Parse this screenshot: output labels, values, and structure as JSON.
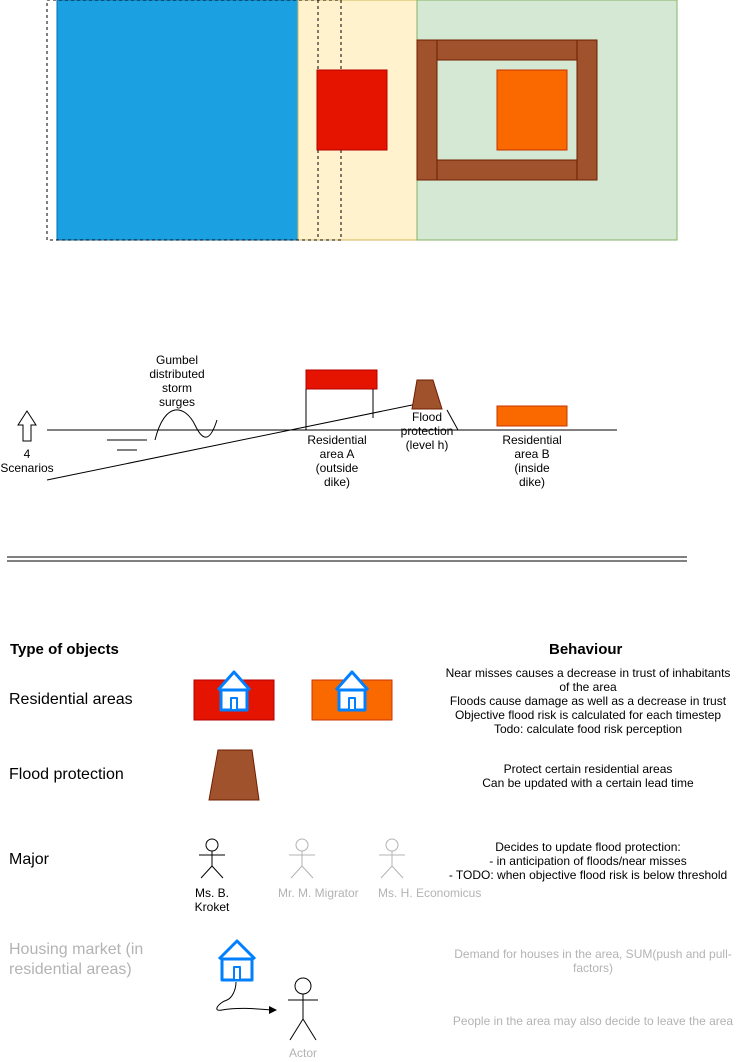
{
  "colors": {
    "sea": "#1ba1e2",
    "beach": "#fff2cc",
    "land": "#d5e8d4",
    "land_border": "#82b366",
    "beach_border": "#d6b656",
    "dike": "#a0522d",
    "area_a": "#e51400",
    "area_b": "#fa6800",
    "house": "#007fff",
    "muted_text": "#b3b3b3"
  },
  "scenario": {
    "scenarios_label": "4\nScenarios",
    "surge_label": "Gumbel\ndistributed\nstorm\nsurges",
    "area_a_label": "Residential\narea A\n(outside\ndike)",
    "protection_label": "Flood\nprotection\n(level h)",
    "area_b_label": "Residential\narea B\n(inside\ndike)"
  },
  "table": {
    "type_header": "Type of objects",
    "behaviour_header": "Behaviour",
    "rows": [
      {
        "label": "Residential areas",
        "behaviour": "Near misses causes a decrease in trust of inhabitants\nof the area\nFloods cause damage as well as a decrease in trust\nObjective flood risk is calculated for each timestep\nTodo: calculate food risk perception"
      },
      {
        "label": "Flood protection",
        "behaviour": "Protect certain residential areas\nCan be updated with a certain lead time"
      },
      {
        "label": "Major",
        "behaviour": "Decides to update flood protection:\n- in anticipation of floods/near misses\n- TODO: when objective flood risk is below threshold",
        "actors": [
          "Ms. B. Kroket",
          "Mr. M. Migrator",
          "Ms. H. Economicus"
        ]
      },
      {
        "label": "Housing market (in\nresidential areas)",
        "behaviour": "Demand for houses in the area, SUM(push and pull-\nfactors)",
        "behaviour2": "People in the area may also decide to leave the area",
        "actor": "Actor"
      }
    ]
  }
}
